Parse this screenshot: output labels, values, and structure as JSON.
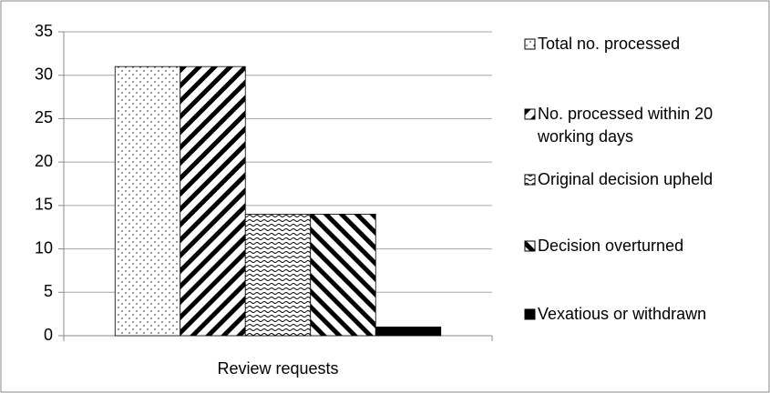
{
  "chart_data": {
    "type": "bar",
    "categories": [
      "Review requests"
    ],
    "series": [
      {
        "name": "Total no. processed",
        "color": "#000000",
        "pattern": "dots",
        "values": [
          31
        ]
      },
      {
        "name": "No. processed within 20 working days",
        "color": "#000000",
        "pattern": "back-diagonal",
        "values": [
          31
        ]
      },
      {
        "name": "Original decision upheld",
        "color": "#000000",
        "pattern": "waves",
        "values": [
          14
        ]
      },
      {
        "name": "Decision overturned",
        "color": "#000000",
        "pattern": "forward-diagonal",
        "values": [
          14
        ]
      },
      {
        "name": "Vexatious or withdrawn",
        "color": "#000000",
        "pattern": "solid",
        "values": [
          1
        ]
      }
    ],
    "ylim": [
      0,
      35
    ],
    "yticks": [
      0,
      5,
      10,
      15,
      20,
      25,
      30,
      35
    ],
    "grid": true,
    "legend": "right"
  }
}
